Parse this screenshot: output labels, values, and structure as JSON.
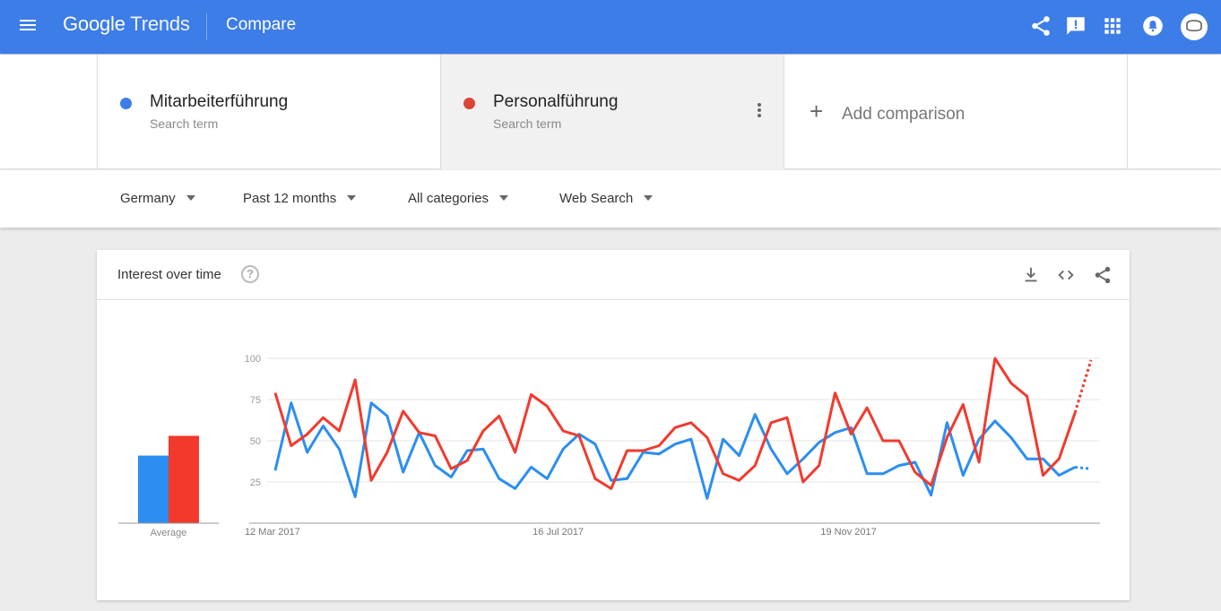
{
  "header": {
    "logo_google": "Google",
    "logo_trends": "Trends",
    "page_title": "Compare"
  },
  "terms": [
    {
      "name": "Mitarbeiterführung",
      "subtitle": "Search term",
      "color": "#4285f4"
    },
    {
      "name": "Personalführung",
      "subtitle": "Search term",
      "color": "#db4437"
    }
  ],
  "add_comparison": "Add comparison",
  "filters": {
    "region": "Germany",
    "period": "Past 12 months",
    "category": "All categories",
    "search_type": "Web Search"
  },
  "card": {
    "title": "Interest over time",
    "help_symbol": "?"
  },
  "chart_data": {
    "type": "line",
    "ylim": [
      0,
      100
    ],
    "y_ticks": [
      "100",
      "75",
      "50",
      "25"
    ],
    "x_tick_labels": [
      "12 Mar 2017",
      "16 Jul 2017",
      "19 Nov 2017"
    ],
    "average_label": "Average",
    "averages": [
      {
        "name": "Mitarbeiterführung",
        "value": 41,
        "color": "#2b8ef0"
      },
      {
        "name": "Personalführung",
        "value": 53,
        "color": "#f1392c"
      }
    ],
    "partial_last_point": true,
    "series": [
      {
        "name": "Mitarbeiterführung",
        "color": "#2b8ef0",
        "values": [
          32,
          73,
          43,
          59,
          45,
          16,
          73,
          65,
          31,
          55,
          35,
          28,
          44,
          45,
          27,
          21,
          34,
          27,
          45,
          54,
          48,
          26,
          27,
          43,
          42,
          48,
          51,
          15,
          51,
          41,
          66,
          45,
          30,
          39,
          49,
          55,
          58,
          30,
          30,
          35,
          37,
          17,
          61,
          29,
          51,
          62,
          52,
          39,
          39,
          29,
          34,
          33
        ]
      },
      {
        "name": "Personalführung",
        "color": "#f13a2e",
        "values": [
          79,
          47,
          54,
          64,
          56,
          87,
          26,
          43,
          68,
          55,
          53,
          33,
          38,
          56,
          65,
          43,
          78,
          71,
          56,
          53,
          27,
          21,
          44,
          44,
          47,
          58,
          61,
          52,
          30,
          26,
          35,
          61,
          64,
          25,
          35,
          79,
          54,
          70,
          50,
          50,
          31,
          23,
          52,
          72,
          37,
          100,
          85,
          77,
          29,
          39,
          67,
          99
        ]
      }
    ]
  }
}
